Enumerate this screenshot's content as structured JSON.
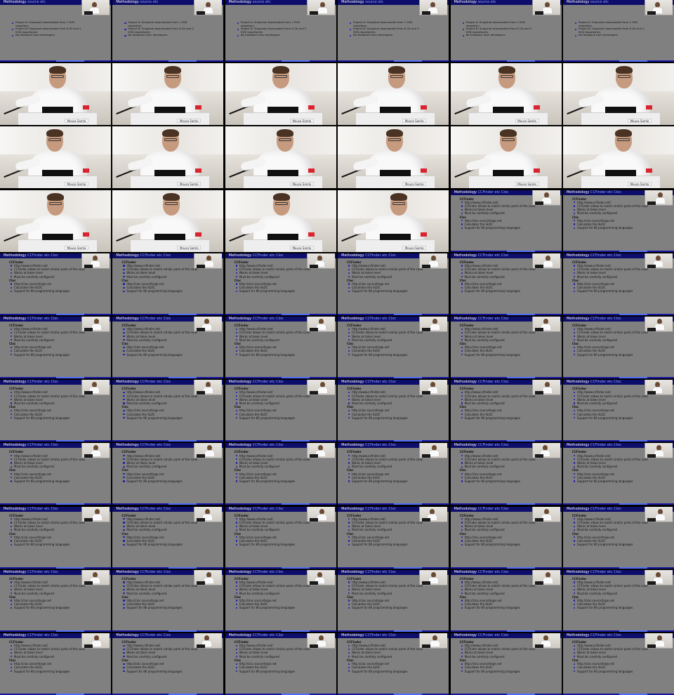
{
  "grid": {
    "columns": 6,
    "rows": 11
  },
  "tiles": [
    "top",
    "top",
    "top",
    "top",
    "top",
    "top",
    "cam",
    "cam",
    "cam",
    "cam",
    "cam",
    "cam",
    "cam",
    "cam",
    "cam",
    "cam",
    "cam",
    "cam",
    "cam",
    "cam",
    "cam",
    "cam",
    "slide",
    "slide",
    "slide",
    "slide",
    "slide",
    "slide",
    "slide",
    "slide",
    "slide",
    "slide",
    "slide",
    "slide",
    "slide",
    "slide",
    "slide",
    "slide",
    "slide",
    "slide",
    "slide",
    "slide",
    "slide",
    "slide",
    "slide",
    "slide",
    "slide",
    "slide",
    "slide",
    "slide",
    "slide",
    "slide",
    "slide",
    "slide",
    "slide",
    "slide",
    "slide",
    "slide",
    "slide",
    "slide",
    "slide",
    "slide",
    "slide",
    "slide",
    "slide",
    "slide"
  ],
  "top_slide": {
    "title": "Methodology",
    "subtitle": "source etc",
    "bullets": [
      "Project A: Snapshot downloaded from 1 SVN repository",
      "Project B: Snapshot downloaded from 6 Git and 2 SVN repositories",
      "No feedback from developers"
    ]
  },
  "slide": {
    "title": "Methodology",
    "subtitle": "CCFinder etc Cloc",
    "sections": [
      {
        "heading": "CCFinder",
        "items": [
          "http://www.ccfinder.net/",
          "CCFinder allows to match similar parts of the code",
          "Works at token level",
          "Must be carefully configured"
        ]
      },
      {
        "heading": "Cloc",
        "items": [
          "http://cloc.sourceforge.net",
          "Calculates the SLOC",
          "Support for 80 programming languages"
        ]
      }
    ]
  },
  "camera": {
    "name_card": "Mousa Samlo"
  },
  "colors": {
    "slide_bg": "#808080",
    "title_bar": "#0d0d6b",
    "title_highlight": "#8fa6ff",
    "bullet": "#1a1ab0",
    "name_tag": "#d9232f"
  },
  "icons": [
    "speaker-thumbnail-icon",
    "bullet-icon"
  ]
}
